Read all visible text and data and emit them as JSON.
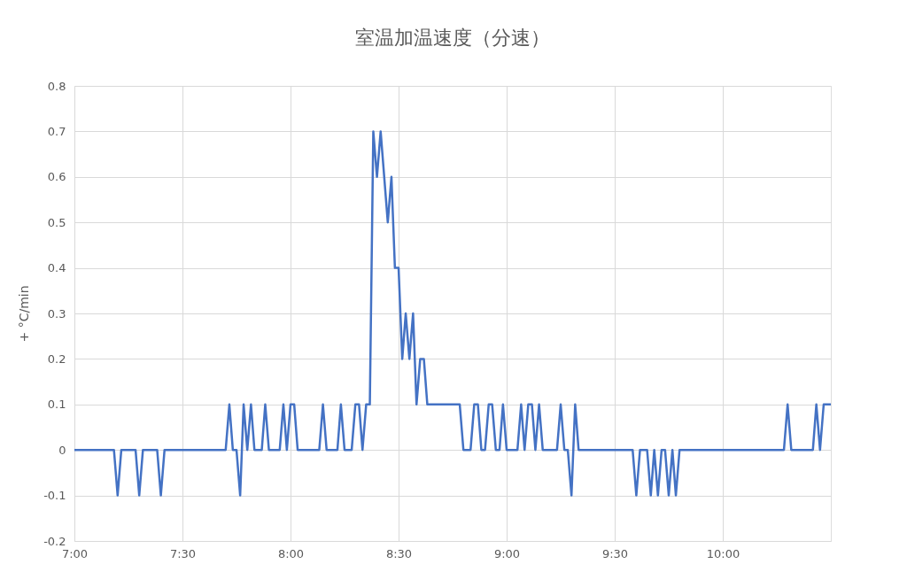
{
  "chart_data": {
    "type": "line",
    "title": "室温加温速度（分速）",
    "ylabel": "+ °C/min",
    "x": [
      7.0,
      7.183,
      7.2,
      7.217,
      7.283,
      7.3,
      7.317,
      7.383,
      7.4,
      7.417,
      7.7,
      7.717,
      7.733,
      7.75,
      7.767,
      7.783,
      7.8,
      7.817,
      7.833,
      7.867,
      7.883,
      7.9,
      7.95,
      7.967,
      7.983,
      8.0,
      8.017,
      8.033,
      8.133,
      8.15,
      8.167,
      8.217,
      8.233,
      8.25,
      8.283,
      8.3,
      8.317,
      8.333,
      8.35,
      8.367,
      8.383,
      8.4,
      8.417,
      8.45,
      8.467,
      8.483,
      8.5,
      8.517,
      8.533,
      8.55,
      8.567,
      8.583,
      8.6,
      8.617,
      8.633,
      8.783,
      8.8,
      8.833,
      8.85,
      8.867,
      8.883,
      8.9,
      8.917,
      8.933,
      8.95,
      8.967,
      8.983,
      9.0,
      9.05,
      9.067,
      9.083,
      9.1,
      9.117,
      9.133,
      9.15,
      9.167,
      9.233,
      9.25,
      9.267,
      9.283,
      9.3,
      9.317,
      9.333,
      9.583,
      9.6,
      9.617,
      9.65,
      9.667,
      9.683,
      9.7,
      9.717,
      9.733,
      9.75,
      9.767,
      9.783,
      9.8,
      10.283,
      10.3,
      10.317,
      10.417,
      10.433,
      10.45,
      10.467,
      10.483,
      10.5
    ],
    "series": [
      {
        "color": "#4472c4",
        "values": [
          0,
          0,
          -0.1,
          0,
          0,
          -0.1,
          0,
          0,
          -0.1,
          0,
          0,
          0.1,
          0,
          0,
          -0.1,
          0.1,
          0,
          0.1,
          0,
          0,
          0.1,
          0,
          0,
          0.1,
          0,
          0.1,
          0.1,
          0,
          0,
          0.1,
          0,
          0,
          0.1,
          0,
          0,
          0.1,
          0.1,
          0,
          0.1,
          0.1,
          0.7,
          0.6,
          0.7,
          0.5,
          0.6,
          0.4,
          0.4,
          0.2,
          0.3,
          0.2,
          0.3,
          0.1,
          0.2,
          0.2,
          0.1,
          0.1,
          0,
          0,
          0.1,
          0.1,
          0,
          0,
          0.1,
          0.1,
          0,
          0,
          0.1,
          0,
          0,
          0.1,
          0,
          0.1,
          0.1,
          0,
          0.1,
          0,
          0,
          0.1,
          0,
          0,
          -0.1,
          0.1,
          0,
          0,
          -0.1,
          0,
          0,
          -0.1,
          0,
          -0.1,
          0,
          0,
          -0.1,
          0,
          -0.1,
          0,
          0,
          0.1,
          0,
          0,
          0.1,
          0,
          0.1,
          0.1,
          0.1
        ]
      }
    ],
    "xlim": [
      7,
      10.5
    ],
    "xticks": [
      {
        "value": 7,
        "label": "7:00"
      },
      {
        "value": 7.5,
        "label": "7:30"
      },
      {
        "value": 8,
        "label": "8:00"
      },
      {
        "value": 8.5,
        "label": "8:30"
      },
      {
        "value": 9,
        "label": "9:00"
      },
      {
        "value": 9.5,
        "label": "9:30"
      },
      {
        "value": 10,
        "label": "10:00"
      }
    ],
    "ylim": [
      -0.2,
      0.8
    ],
    "yticks": [
      -0.2,
      -0.1,
      0,
      0.1,
      0.2,
      0.3,
      0.4,
      0.5,
      0.6,
      0.7,
      0.8
    ],
    "grid": true,
    "marker": "none",
    "line_style": "solid"
  }
}
